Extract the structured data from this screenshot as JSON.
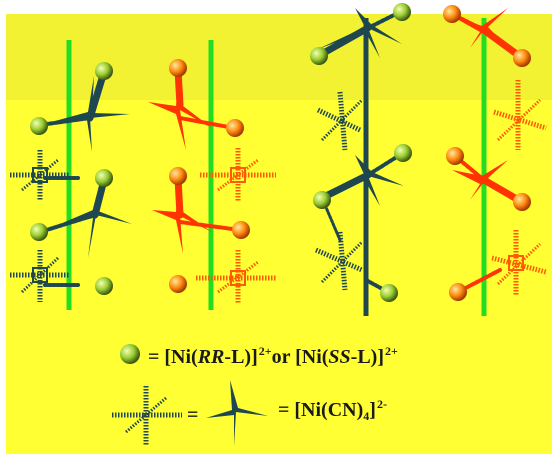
{
  "legend": {
    "ni_cation": {
      "prefix": "= [Ni(",
      "rr": "RR",
      "mid": "-L)]",
      "charge1": "2+",
      "or": "or [Ni(",
      "ss": "SS",
      "mid2": "-L)]",
      "charge2": "2+"
    },
    "ni_anion": {
      "equals": "=",
      "prefix": "= [Ni(CN)",
      "subscript": "4",
      "suffix": "]",
      "charge": "2-"
    }
  },
  "colors": {
    "background": "#ffff33",
    "background_top": "#f2f232",
    "axis_green": "#22dd22",
    "dark_unit": "#1f4750",
    "red_unit": "#ff3300",
    "sphere_green": "#9acd32",
    "sphere_orange": "#ff8800"
  },
  "icons": [
    "green-sphere-icon",
    "orange-sphere-icon",
    "dark-cross-icon",
    "red-cross-icon",
    "dashed-cross-icon"
  ]
}
